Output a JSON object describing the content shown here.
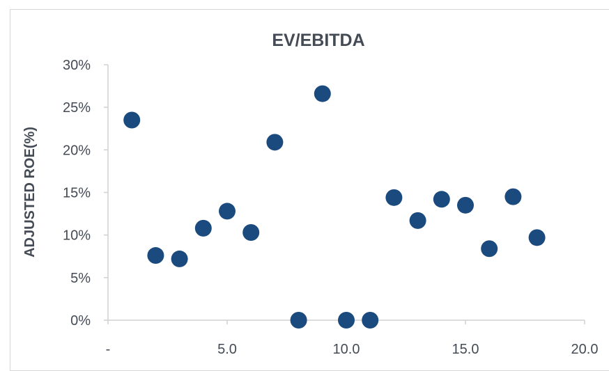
{
  "chart_data": {
    "type": "scatter",
    "title": "EV/EBITDA",
    "xlabel": "",
    "ylabel": "ADJUSTED ROE(%)",
    "xlim": [
      0,
      20
    ],
    "ylim": [
      0,
      0.3
    ],
    "x_ticks": [
      0,
      5,
      10,
      15,
      20
    ],
    "x_tick_labels": [
      "-",
      "5.0",
      "10.0",
      "15.0",
      "20.0"
    ],
    "y_ticks": [
      0,
      0.05,
      0.1,
      0.15,
      0.2,
      0.25,
      0.3
    ],
    "y_tick_labels": [
      "0%",
      "5%",
      "10%",
      "15%",
      "20%",
      "25%",
      "30%"
    ],
    "grid": false,
    "marker_color": "#1b4a7e",
    "points": [
      {
        "x": 1.0,
        "y": 0.235
      },
      {
        "x": 2.0,
        "y": 0.076
      },
      {
        "x": 3.0,
        "y": 0.072
      },
      {
        "x": 4.0,
        "y": 0.108
      },
      {
        "x": 5.0,
        "y": 0.128
      },
      {
        "x": 6.0,
        "y": 0.103
      },
      {
        "x": 7.0,
        "y": 0.209
      },
      {
        "x": 8.0,
        "y": 0.0
      },
      {
        "x": 9.0,
        "y": 0.266
      },
      {
        "x": 10.0,
        "y": 0.0
      },
      {
        "x": 11.0,
        "y": 0.0
      },
      {
        "x": 12.0,
        "y": 0.144
      },
      {
        "x": 13.0,
        "y": 0.117
      },
      {
        "x": 14.0,
        "y": 0.142
      },
      {
        "x": 15.0,
        "y": 0.135
      },
      {
        "x": 16.0,
        "y": 0.084
      },
      {
        "x": 17.0,
        "y": 0.145
      },
      {
        "x": 18.0,
        "y": 0.097
      }
    ]
  }
}
